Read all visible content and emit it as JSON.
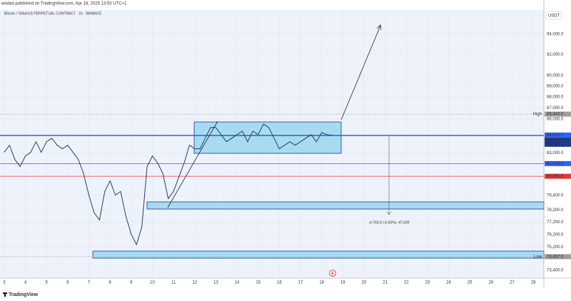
{
  "header": {
    "author_line": "wedad published on TradingView.com, Apr 18, 2025 13:50 UTC+1",
    "symbol_line": "Bitcoin / TetherUS PERPETUAL CONTRACT · 1h · BINANCE",
    "currency": "USDT",
    "logo": "TradingView"
  },
  "chart_data": {
    "type": "line",
    "log": true,
    "color": "#2b3a67",
    "grid": true,
    "x": [
      3,
      3.25,
      3.5,
      3.75,
      4,
      4.25,
      4.5,
      4.75,
      5,
      5.25,
      5.5,
      5.75,
      6,
      6.25,
      6.5,
      6.75,
      7,
      7.25,
      7.5,
      7.75,
      8,
      8.25,
      8.5,
      8.75,
      9,
      9.25,
      9.5,
      9.75,
      10,
      10.25,
      10.5,
      10.75,
      11,
      11.25,
      11.5,
      11.75,
      12,
      12.25,
      12.5,
      12.75,
      13,
      13.25,
      13.5,
      13.75,
      14,
      14.25,
      14.5,
      14.75,
      15,
      15.25,
      15.5,
      15.75,
      16,
      16.25,
      16.5,
      16.75,
      17,
      17.25,
      17.5,
      17.75,
      18,
      18.25,
      18.5
    ],
    "values": [
      83050,
      83670,
      82430,
      81820,
      82740,
      83050,
      83980,
      83050,
      83980,
      84290,
      83670,
      83360,
      83670,
      83050,
      82430,
      81210,
      79420,
      77960,
      77380,
      79720,
      80610,
      79420,
      79720,
      77670,
      76240,
      75400,
      76810,
      81820,
      82740,
      82130,
      81210,
      79130,
      79720,
      80910,
      82130,
      83670,
      83360,
      83360,
      84290,
      85240,
      85240,
      84600,
      83980,
      84290,
      84600,
      84920,
      83980,
      84920,
      84600,
      85550,
      85240,
      84290,
      83360,
      83670,
      83980,
      83670,
      83980,
      84290,
      84600,
      83980,
      84790,
      84600,
      84540
    ],
    "xlim": [
      2.8,
      28.5
    ],
    "xticks": [
      3,
      4,
      5,
      6,
      7,
      8,
      9,
      10,
      11,
      12,
      13,
      14,
      15,
      16,
      17,
      18,
      19,
      20,
      21,
      22,
      23,
      24,
      25,
      26,
      27,
      28
    ],
    "ylim": [
      72800,
      96400
    ],
    "yticks": [
      {
        "value": 94000,
        "label": "94,000.0"
      },
      {
        "value": 92000,
        "label": "92,000.0"
      },
      {
        "value": 90000,
        "label": "90,000.0"
      },
      {
        "value": 89000,
        "label": "89,000.0"
      },
      {
        "value": 88000,
        "label": "88,000.0"
      },
      {
        "value": 87000,
        "label": "87,000.0"
      },
      {
        "value": 86000,
        "label": "86,000.0"
      },
      {
        "value": 83000,
        "label": "83,000.0"
      },
      {
        "value": 79400,
        "label": "79,400.0"
      },
      {
        "value": 78200,
        "label": "78,200.0"
      },
      {
        "value": 77200,
        "label": "77,200.0"
      },
      {
        "value": 76200,
        "label": "76,200.0"
      },
      {
        "value": 75200,
        "label": "75,200.0"
      },
      {
        "value": 73400,
        "label": "73,400.0"
      }
    ],
    "levels": [
      {
        "value": 86443.0,
        "label": "86,443.0",
        "tag": "High",
        "color": "#9e9e9e"
      },
      {
        "value": 84570.7,
        "label": "84,570.7",
        "color": "#2962ff"
      },
      {
        "value": 84519.9,
        "label": "84,519.9",
        "time": "09:10",
        "color": "#1e3a8a"
      },
      {
        "value": 82079.8,
        "label": "82,079.8",
        "color": "#2962ff"
      },
      {
        "value": 80994.9,
        "label": "80,994.9",
        "color": "#e53935"
      },
      {
        "value": 74457.0,
        "label": "74,457.0",
        "tag": "Low",
        "color": "#9e9e9e"
      }
    ],
    "measure_label": "-4,763.9 (-5.63%) -47,639"
  }
}
